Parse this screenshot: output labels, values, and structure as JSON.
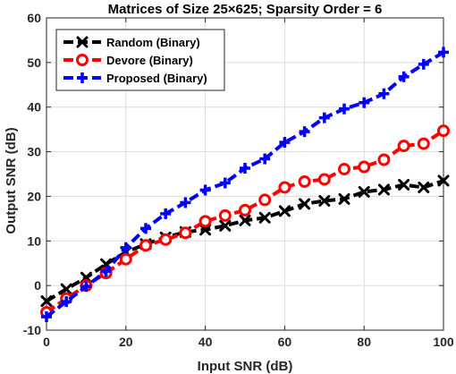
{
  "chart_data": {
    "type": "line",
    "title": "Matrices of Size 25×625; Sparsity Order = 6",
    "xlabel": "Input SNR (dB)",
    "ylabel": "Output SNR (dB)",
    "xlim": [
      0,
      100
    ],
    "ylim": [
      -10,
      60
    ],
    "xticks": [
      "0",
      "20",
      "40",
      "60",
      "80",
      "100"
    ],
    "yticks": [
      "-10",
      "0",
      "10",
      "20",
      "30",
      "40",
      "50",
      "60"
    ],
    "grid": true,
    "legend_position": "top-left",
    "x": [
      0,
      5,
      10,
      15,
      20,
      25,
      30,
      35,
      40,
      45,
      50,
      55,
      60,
      65,
      70,
      75,
      80,
      85,
      90,
      95,
      100
    ],
    "series": [
      {
        "name": "Random (Binary)",
        "color": "#000000",
        "marker": "x",
        "values": [
          -3.5,
          -0.8,
          1.8,
          4.8,
          7.5,
          9.3,
          10.8,
          12.0,
          12.5,
          13.4,
          14.6,
          15.2,
          16.7,
          18.3,
          19.0,
          19.4,
          21.0,
          21.5,
          22.6,
          22.0,
          23.5
        ]
      },
      {
        "name": "Devore (Binary)",
        "color": "#ff0000",
        "marker": "circle",
        "values": [
          -6.0,
          -2.9,
          0.0,
          2.8,
          5.9,
          9.0,
          10.3,
          11.8,
          14.4,
          15.7,
          16.9,
          19.2,
          22.0,
          23.3,
          23.8,
          26.1,
          26.6,
          28.2,
          31.3,
          31.8,
          34.7
        ]
      },
      {
        "name": "Proposed (Binary)",
        "color": "#0000ff",
        "marker": "plus",
        "values": [
          -7.0,
          -3.6,
          -0.2,
          3.2,
          8.5,
          12.8,
          16.1,
          18.6,
          21.4,
          23.0,
          26.3,
          28.4,
          32.1,
          34.5,
          37.6,
          39.6,
          41.0,
          43.0,
          46.8,
          49.6,
          52.3
        ]
      }
    ]
  }
}
